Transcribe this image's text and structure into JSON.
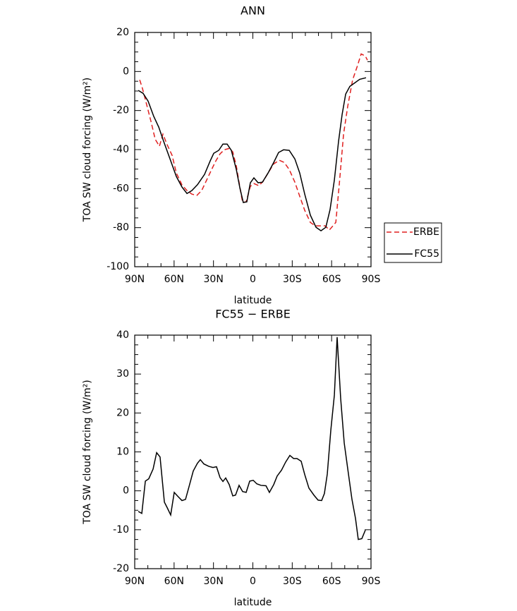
{
  "chart_data": [
    {
      "type": "line",
      "title": "ANN",
      "xlabel": "latitude",
      "ylabel": "TOA SW cloud forcing (W/m²)",
      "xlim": [
        90,
        -90
      ],
      "ylim": [
        -100,
        20
      ],
      "xticks": [
        {
          "value": 90,
          "label": "90N"
        },
        {
          "value": 60,
          "label": "60N"
        },
        {
          "value": 30,
          "label": "30N"
        },
        0,
        {
          "value": -30,
          "label": "30S"
        },
        {
          "value": -60,
          "label": "60S"
        },
        {
          "value": -90,
          "label": "90S"
        }
      ],
      "yticks": [
        -100,
        -80,
        -60,
        -40,
        -20,
        0,
        20
      ],
      "legend": "right",
      "series": [
        {
          "name": "ERBE",
          "color": "#e02020",
          "line_style": "dashed",
          "x": [
            86.2,
            84.1,
            80.9,
            77.6,
            74.4,
            71.2,
            68.5,
            65.3,
            61.5,
            58.3,
            54,
            50.2,
            46.5,
            42.7,
            39,
            35.2,
            31.4,
            28.2,
            25,
            21.8,
            18,
            15.3,
            12.6,
            9.9,
            7.8,
            5.1,
            1.9,
            -0.8,
            -4.5,
            -7.8,
            -11.6,
            -15.9,
            -20.2,
            -23.9,
            -27.7,
            -32,
            -35.7,
            -39.5,
            -43.8,
            -47.6,
            -51.9,
            -55.1,
            -58.3,
            -63.2,
            -65.8,
            -69.1,
            -72.3,
            -76,
            -79.8,
            -82.5,
            -85.7,
            -87.3
          ],
          "values": [
            -4.3,
            -8.7,
            -17,
            -25.6,
            -34.7,
            -38.3,
            -32.1,
            -37.5,
            -43,
            -52,
            -58.1,
            -61,
            -62.8,
            -63.5,
            -61,
            -55.6,
            -50.2,
            -45.8,
            -42.2,
            -40.1,
            -39.4,
            -41.2,
            -48.4,
            -59.2,
            -67.1,
            -66.8,
            -58.8,
            -57.4,
            -58.5,
            -56.3,
            -52,
            -47.3,
            -45.5,
            -46.6,
            -50.2,
            -56.7,
            -63.9,
            -71.1,
            -77.3,
            -79.1,
            -79.1,
            -79.1,
            -81.2,
            -77.3,
            -58.1,
            -32.1,
            -17.7,
            -4.3,
            3.2,
            9,
            7.9,
            5.8
          ]
        },
        {
          "name": "FC55",
          "color": "#000000",
          "line_style": "solid",
          "x": [
            87.3,
            83.6,
            79.8,
            75.5,
            71.7,
            68,
            63.7,
            58.3,
            54,
            50.2,
            46.5,
            42.2,
            36.8,
            32.5,
            29.8,
            26,
            22.8,
            19.6,
            16.4,
            12.6,
            9.9,
            7.3,
            4.6,
            1.9,
            -0.8,
            -4,
            -7.3,
            -11.6,
            -15.9,
            -19.6,
            -23.4,
            -27.7,
            -32,
            -35.7,
            -39.5,
            -43.8,
            -48.1,
            -51.9,
            -55.6,
            -58.8,
            -62.1,
            -65.3,
            -68,
            -70.7,
            -73.9,
            -77.7,
            -81.4,
            -86.2
          ],
          "values": [
            -9.7,
            -11.2,
            -15.2,
            -23,
            -28.5,
            -35.7,
            -43.7,
            -53.8,
            -59.2,
            -62.5,
            -61,
            -58,
            -52.7,
            -45.8,
            -41.9,
            -40.4,
            -37.2,
            -37.2,
            -40.4,
            -50.2,
            -59.6,
            -67.1,
            -66.8,
            -57,
            -54.5,
            -57,
            -56.7,
            -52,
            -46.6,
            -41.5,
            -40.1,
            -40.4,
            -44.8,
            -52,
            -62.8,
            -73.6,
            -79.8,
            -81.6,
            -79.8,
            -70.8,
            -55.6,
            -35.7,
            -22,
            -11.6,
            -7.6,
            -5.8,
            -4,
            -3.2
          ]
        }
      ]
    },
    {
      "type": "line",
      "title": "FC55 − ERBE",
      "xlabel": "latitude",
      "ylabel": "TOA SW cloud forcing (W/m²)",
      "xlim": [
        90,
        -90
      ],
      "ylim": [
        -20,
        40
      ],
      "xticks": [
        {
          "value": 90,
          "label": "90N"
        },
        {
          "value": 60,
          "label": "60N"
        },
        {
          "value": 30,
          "label": "30N"
        },
        0,
        {
          "value": -30,
          "label": "30S"
        },
        {
          "value": -60,
          "label": "60S"
        },
        {
          "value": -90,
          "label": "90S"
        }
      ],
      "yticks": [
        -20,
        -10,
        0,
        10,
        20,
        30,
        40
      ],
      "series": [
        {
          "color": "#000000",
          "line_style": "solid",
          "x": [
            87.3,
            84.6,
            81.9,
            79.3,
            76,
            73.3,
            70.7,
            67.4,
            65.3,
            62.6,
            59.9,
            57.2,
            54,
            51.3,
            48.6,
            45.4,
            42.2,
            40,
            37.3,
            33.6,
            30.4,
            27.7,
            25,
            22.8,
            20.7,
            18,
            15.3,
            13.2,
            10.5,
            7.8,
            5.1,
            2.4,
            -0.3,
            -3,
            -6.2,
            -10,
            -12.6,
            -15.9,
            -18.5,
            -21.8,
            -25,
            -28.2,
            -31,
            -33.6,
            -36.8,
            -39.5,
            -42.7,
            -46.5,
            -49.7,
            -52.4,
            -54.5,
            -56.7,
            -59.4,
            -62.1,
            -64.2,
            -66.9,
            -69.6,
            -72.3,
            -75.5,
            -78.2,
            -80.3,
            -83,
            -85.7
          ],
          "values": [
            -5.3,
            -5.8,
            2.5,
            3.1,
            5.6,
            9.8,
            8.7,
            -2.9,
            -4.3,
            -6.2,
            -0.4,
            -1.4,
            -2.5,
            -2.2,
            1.1,
            5.1,
            7.1,
            8,
            6.9,
            6.3,
            6,
            6.2,
            3.4,
            2.4,
            3.3,
            1.6,
            -1.3,
            -1.1,
            1.4,
            -0.2,
            -0.4,
            2.5,
            2.7,
            1.8,
            1.4,
            1.3,
            -0.4,
            1.6,
            3.8,
            5.3,
            7.4,
            9.1,
            8.3,
            8.3,
            7.6,
            4.2,
            0.7,
            -1.1,
            -2.4,
            -2.5,
            -0.7,
            4.3,
            15.6,
            24.6,
            39.5,
            23.7,
            12.3,
            5.6,
            -2.2,
            -7.1,
            -12.5,
            -12.3,
            -10.1
          ]
        }
      ]
    }
  ]
}
